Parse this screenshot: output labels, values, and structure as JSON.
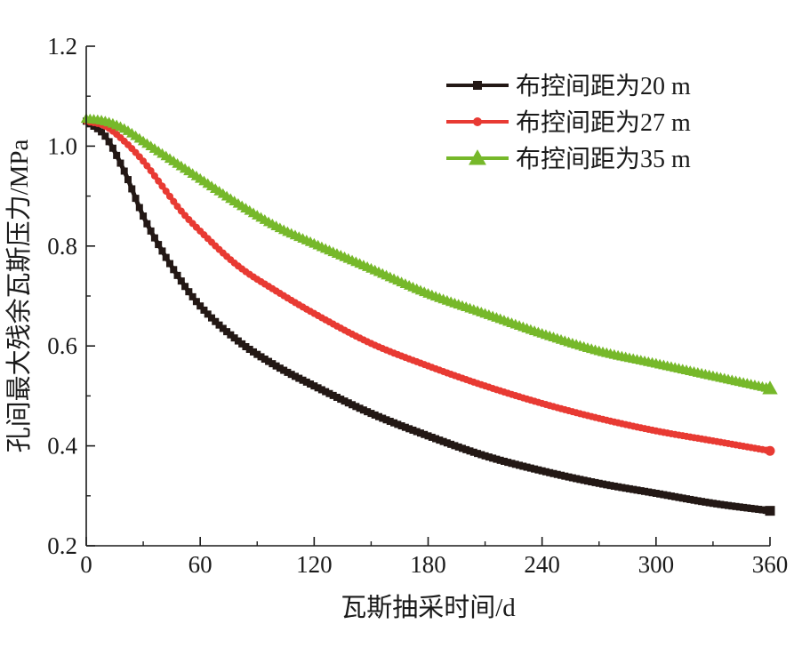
{
  "chart_data": {
    "type": "line",
    "xlabel": "瓦斯抽采时间/d",
    "ylabel": "孔间最大残余瓦斯压力/MPa",
    "xlim": [
      0,
      360
    ],
    "ylim": [
      0.2,
      1.2
    ],
    "xticks": [
      "0",
      "60",
      "120",
      "180",
      "240",
      "300",
      "360"
    ],
    "yticks": [
      "0.2",
      "0.4",
      "0.6",
      "0.8",
      "1.0",
      "1.2"
    ],
    "grid": false,
    "legend_position": "top-right",
    "x": [
      0,
      10,
      20,
      30,
      40,
      50,
      60,
      80,
      100,
      120,
      150,
      180,
      210,
      240,
      270,
      300,
      330,
      360
    ],
    "series": [
      {
        "name": "布控间距为20 m",
        "color": "#231815",
        "marker": "square",
        "values": [
          1.05,
          1.02,
          0.95,
          0.86,
          0.79,
          0.73,
          0.68,
          0.61,
          0.56,
          0.52,
          0.465,
          0.42,
          0.38,
          0.35,
          0.325,
          0.305,
          0.285,
          0.27
        ]
      },
      {
        "name": "布控间距为27 m",
        "color": "#e83a33",
        "marker": "circle",
        "values": [
          1.05,
          1.04,
          1.01,
          0.97,
          0.92,
          0.87,
          0.83,
          0.76,
          0.71,
          0.665,
          0.605,
          0.56,
          0.52,
          0.485,
          0.455,
          0.43,
          0.41,
          0.39
        ]
      },
      {
        "name": "布控间距为35 m",
        "color": "#76b82a",
        "marker": "triangle",
        "values": [
          1.055,
          1.05,
          1.035,
          1.01,
          0.985,
          0.96,
          0.935,
          0.885,
          0.84,
          0.805,
          0.755,
          0.705,
          0.665,
          0.625,
          0.59,
          0.565,
          0.54,
          0.515
        ]
      }
    ]
  }
}
